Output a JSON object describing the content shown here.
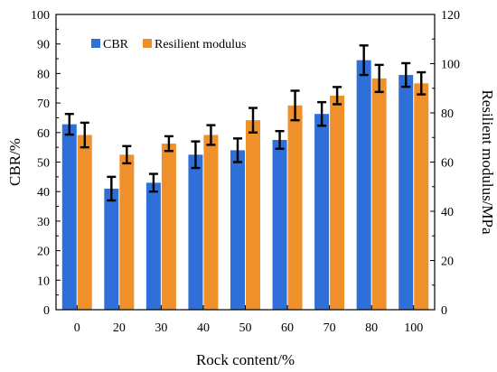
{
  "chart_data": {
    "type": "bar",
    "xlabel": "Rock content/%",
    "ylabel_left": "CBR/%",
    "ylabel_right": "Resilient modulus/MPa",
    "categories": [
      "0",
      "20",
      "30",
      "40",
      "50",
      "60",
      "70",
      "80",
      "100"
    ],
    "ylim_left": [
      0,
      100
    ],
    "ylim_right": [
      0,
      120
    ],
    "yticks_left": [
      "0",
      "10",
      "20",
      "30",
      "40",
      "50",
      "60",
      "70",
      "80",
      "90",
      "100"
    ],
    "yticks_right": [
      "0",
      "20",
      "40",
      "60",
      "80",
      "100",
      "120"
    ],
    "legend_position": "top-left",
    "grid": false,
    "series": [
      {
        "name": "CBR",
        "axis": "left",
        "color": "#2e6fd8",
        "values": [
          62.8,
          41.0,
          43.0,
          52.5,
          54.0,
          57.5,
          66.3,
          84.5,
          79.5
        ],
        "errors": [
          3.5,
          4.0,
          3.0,
          4.5,
          4.0,
          3.0,
          4.0,
          5.0,
          4.0
        ]
      },
      {
        "name": "Resilient modulus",
        "axis": "right",
        "color": "#f0902a",
        "values": [
          71.0,
          63.0,
          67.5,
          71.0,
          77.0,
          83.0,
          87.0,
          94.0,
          92.0
        ],
        "errors": [
          5.0,
          3.5,
          3.0,
          4.0,
          5.0,
          6.0,
          3.5,
          5.5,
          4.5
        ]
      }
    ]
  }
}
